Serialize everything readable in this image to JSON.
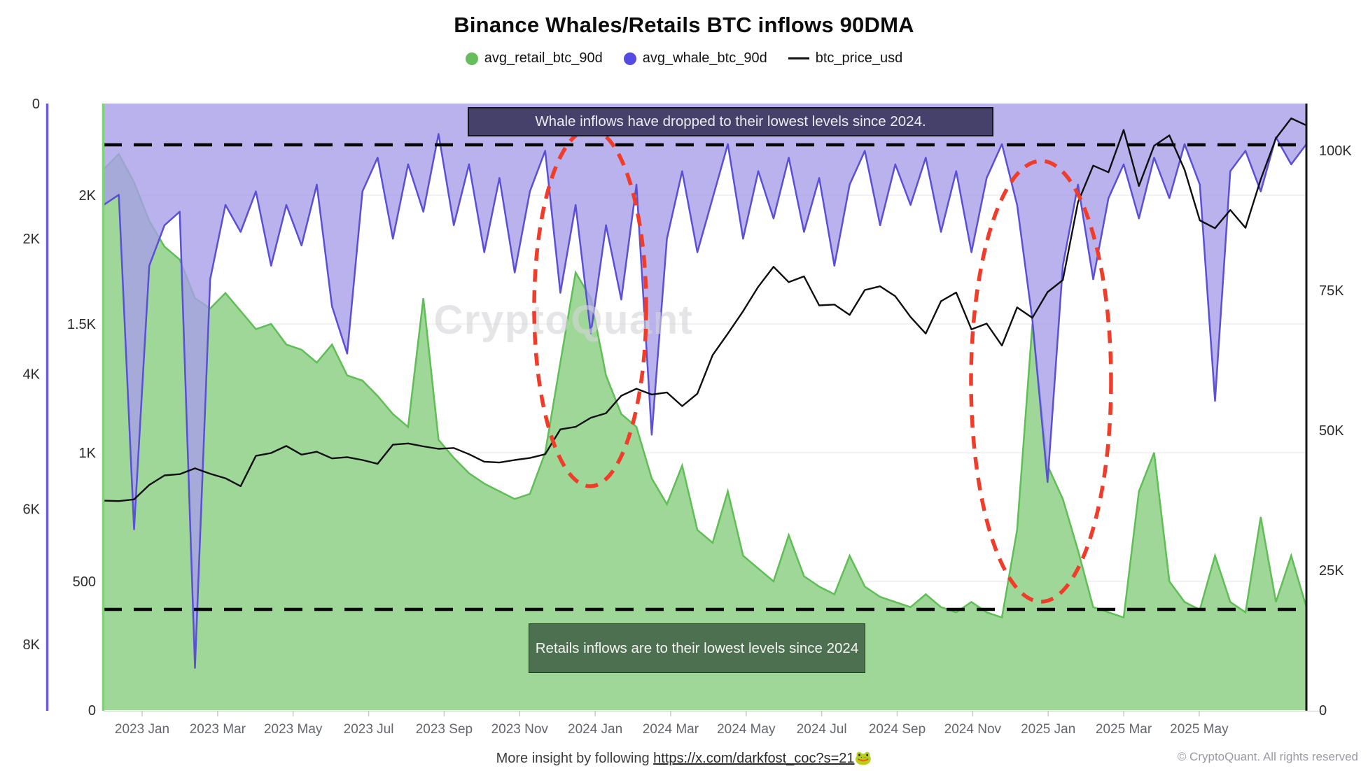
{
  "title": "Binance Whales/Retails BTC inflows 90DMA",
  "legend": [
    {
      "label": "avg_retail_btc_90d",
      "color": "#65bd5b",
      "marker": "circle"
    },
    {
      "label": "avg_whale_btc_90d",
      "color": "#554ae2",
      "marker": "circle"
    },
    {
      "label": "btc_price_usd",
      "color": "#111111",
      "marker": "line"
    }
  ],
  "watermark": "CryptoQuant",
  "annotations": {
    "whale_note": "Whale inflows have dropped to their lowest levels since 2024.",
    "retail_note": "Retails inflows are to their lowest levels since 2024"
  },
  "axes": {
    "left_whale": {
      "title": "whale inflow (inverted)",
      "ticks": [
        "0",
        "2K",
        "4K",
        "6K",
        "8K"
      ]
    },
    "left_retail": {
      "title": "retail inflow",
      "ticks": [
        "2K",
        "1.5K",
        "1K",
        "500",
        "0"
      ]
    },
    "right_price": {
      "title": "btc price usd",
      "ticks": [
        "100K",
        "75K",
        "50K",
        "25K",
        "0"
      ]
    },
    "x": {
      "labels": [
        "2023 Jan",
        "2023 Mar",
        "2023 May",
        "2023 Jul",
        "2023 Sep",
        "2023 Nov",
        "2024 Jan",
        "2024 Mar",
        "2024 May",
        "2024 Jul",
        "2024 Sep",
        "2024 Nov",
        "2025 Jan",
        "2025 Mar",
        "2025 May"
      ]
    }
  },
  "footer": {
    "prefix": "More insight by following ",
    "link_text": "https://x.com/darkfost_coc?s=21",
    "emoji": "🐸",
    "copyright": "© CryptoQuant. All rights reserved"
  },
  "chart_data": {
    "type": "area",
    "x_start": "2022-12",
    "x_end": "2025-07",
    "points_per_series": 80,
    "notes": "whale series plotted on inverted left axis (0 at top, fills downward from top); retail series fills upward from bottom; price on right axis",
    "reference_lines": [
      {
        "name": "whale-low-level",
        "axis": "whale",
        "value": 610,
        "style": "black-dashed"
      },
      {
        "name": "retail-low-level",
        "axis": "retail",
        "value": 390,
        "style": "black-dashed"
      }
    ],
    "highlights": [
      {
        "name": "ellipse-early-2024",
        "period": "2023-12 to 2024-03"
      },
      {
        "name": "ellipse-late-2024",
        "period": "2024-11 to 2025-01"
      }
    ],
    "axis_ranges": {
      "whale_btc": [
        0,
        8400
      ],
      "retail_btc": [
        0,
        2350
      ],
      "price_usd": [
        0,
        112000
      ]
    },
    "series": [
      {
        "name": "avg_retail_btc_90d",
        "axis": "retail",
        "fill": "#9ed798",
        "stroke": "#5fbe55",
        "values": [
          2100,
          2160,
          2050,
          1900,
          1800,
          1750,
          1600,
          1560,
          1620,
          1550,
          1480,
          1500,
          1420,
          1400,
          1350,
          1420,
          1300,
          1280,
          1220,
          1150,
          1100,
          1600,
          1050,
          980,
          920,
          880,
          850,
          820,
          840,
          1000,
          1350,
          1700,
          1600,
          1300,
          1150,
          1100,
          900,
          800,
          950,
          700,
          650,
          850,
          600,
          550,
          500,
          680,
          520,
          480,
          450,
          600,
          480,
          440,
          420,
          400,
          450,
          400,
          380,
          420,
          380,
          360,
          700,
          1500,
          950,
          820,
          620,
          400,
          380,
          360,
          850,
          1000,
          500,
          420,
          390,
          600,
          420,
          380,
          750,
          420,
          600,
          400
        ]
      },
      {
        "name": "avg_whale_btc_90d",
        "axis": "whale",
        "fill": "#a89fe9",
        "stroke": "#5b4fd6",
        "values": [
          1500,
          1350,
          6300,
          2400,
          1800,
          1600,
          8350,
          2600,
          1500,
          1900,
          1300,
          2400,
          1500,
          2100,
          1200,
          3000,
          3700,
          1300,
          800,
          2000,
          900,
          1600,
          450,
          1800,
          900,
          2200,
          1100,
          2500,
          1300,
          700,
          2800,
          1500,
          3400,
          1800,
          2900,
          1200,
          4900,
          2000,
          1000,
          2200,
          1400,
          600,
          2000,
          1000,
          1700,
          800,
          1900,
          1100,
          2400,
          1200,
          700,
          1800,
          900,
          1500,
          800,
          1900,
          1000,
          2200,
          1100,
          600,
          1500,
          3200,
          5600,
          2400,
          1200,
          2600,
          1400,
          900,
          1700,
          800,
          1400,
          600,
          1200,
          4400,
          1000,
          700,
          1300,
          500,
          900,
          600
        ]
      },
      {
        "name": "btc_price_usd",
        "axis": "price",
        "stroke": "#0f0f0f",
        "values": [
          16700,
          16600,
          17000,
          20500,
          22800,
          23100,
          24500,
          23200,
          22100,
          20200,
          27500,
          28200,
          29900,
          27800,
          28500,
          26900,
          27200,
          26500,
          25600,
          30200,
          30500,
          29800,
          29200,
          29400,
          27900,
          26100,
          25900,
          26500,
          27000,
          27900,
          33900,
          34500,
          36700,
          37800,
          42000,
          43700,
          42300,
          42800,
          39500,
          42500,
          51800,
          57000,
          62400,
          68300,
          73100,
          69400,
          70800,
          63800,
          64000,
          61500,
          67500,
          68400,
          66000,
          61000,
          57000,
          64800,
          66900,
          58000,
          59400,
          54100,
          63300,
          60800,
          67000,
          69900,
          88700,
          97500,
          95900,
          106100,
          92600,
          102300,
          104800,
          96500,
          84300,
          82400,
          86800,
          82500,
          94200,
          104100,
          108900,
          107200
        ]
      }
    ]
  }
}
